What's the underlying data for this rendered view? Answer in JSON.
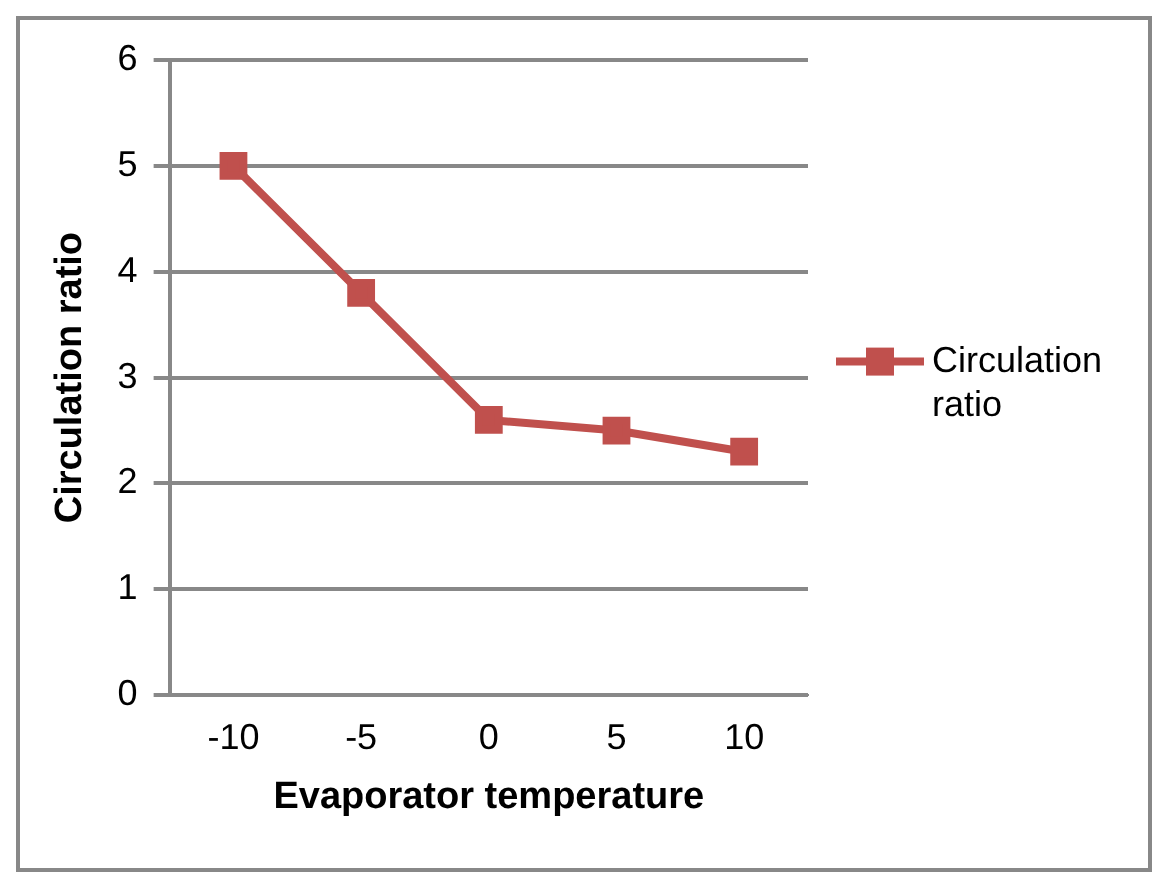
{
  "chart_data": {
    "type": "line",
    "xlabel": "Evaporator temperature",
    "ylabel": "Circulation ratio",
    "categories": [
      "-10",
      "-5",
      "0",
      "5",
      "10"
    ],
    "series": [
      {
        "name": "Circulation ratio",
        "color": "#c0504d",
        "values": [
          5,
          3.8,
          2.6,
          2.5,
          2.3
        ]
      }
    ],
    "ylim": [
      0,
      6
    ],
    "yticks": [
      0,
      1,
      2,
      3,
      4,
      5,
      6
    ],
    "grid": "y",
    "legend": "right",
    "marker": "square",
    "line_style": "solid"
  }
}
